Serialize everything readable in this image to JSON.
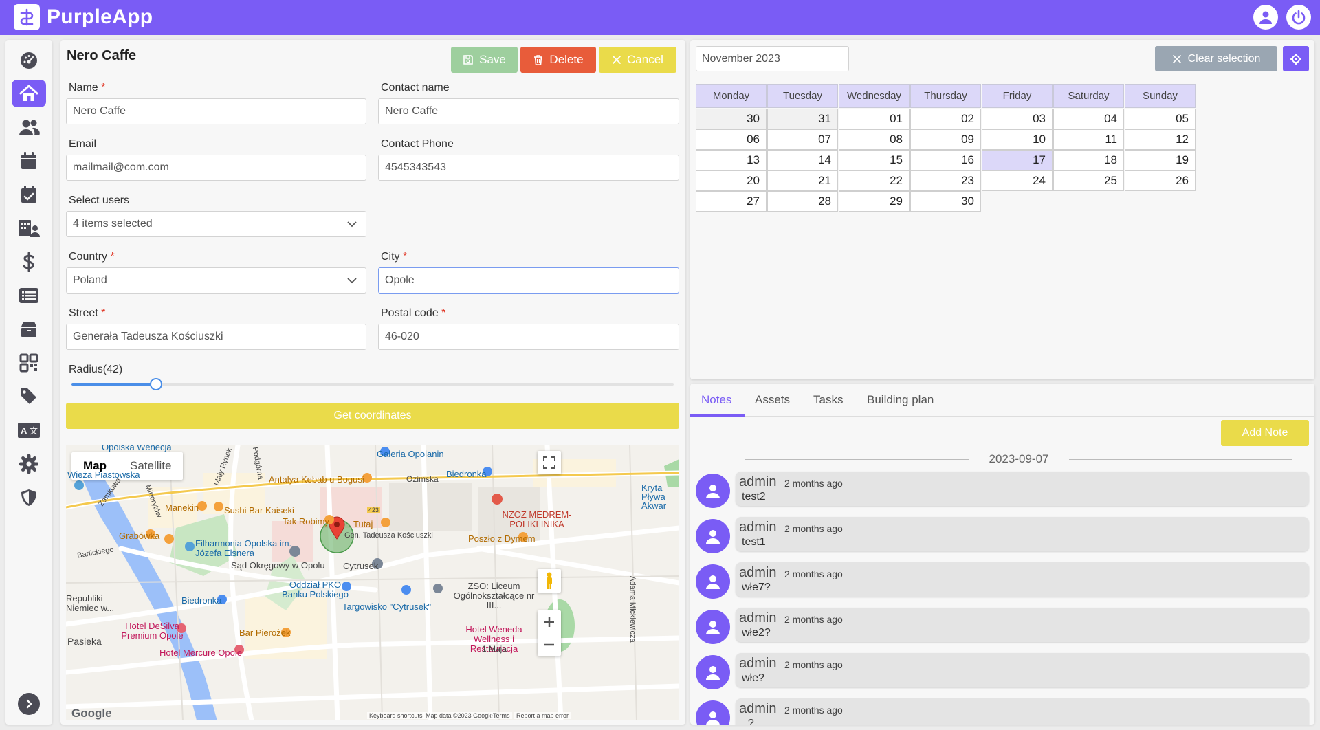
{
  "app": {
    "name": "PurpleApp"
  },
  "colors": {
    "primary": "#7a5cf5",
    "save": "#9ecf9e",
    "delete": "#e85c3a",
    "cancel": "#eadb4a",
    "clear": "#9aa6b2"
  },
  "topbar": {
    "icons": [
      "user-icon",
      "power-icon"
    ]
  },
  "sidebar": {
    "items": [
      {
        "name": "dashboard",
        "icon": "gauge-icon"
      },
      {
        "name": "locations",
        "icon": "home-icon",
        "active": true
      },
      {
        "name": "users",
        "icon": "users-icon"
      },
      {
        "name": "calendar",
        "icon": "calendar-icon"
      },
      {
        "name": "tasks",
        "icon": "calendar-check-icon"
      },
      {
        "name": "buildings",
        "icon": "building-user-icon"
      },
      {
        "name": "finance",
        "icon": "dollar-icon"
      },
      {
        "name": "lists",
        "icon": "list-icon"
      },
      {
        "name": "assets",
        "icon": "box-icon"
      },
      {
        "name": "qr-codes",
        "icon": "qrcode-icon"
      },
      {
        "name": "tags",
        "icon": "tag-icon"
      },
      {
        "name": "translations",
        "icon": "language-icon"
      },
      {
        "name": "settings",
        "icon": "gear-icon"
      },
      {
        "name": "security",
        "icon": "shield-icon"
      }
    ],
    "toggle_icon": "chevron-right-icon"
  },
  "form": {
    "title": "Nero Caffe",
    "buttons": {
      "save": "Save",
      "delete": "Delete",
      "cancel": "Cancel"
    },
    "fields": {
      "name": {
        "label": "Name",
        "value": "Nero Caffe",
        "required": "*"
      },
      "contact_name": {
        "label": "Contact name",
        "value": "Nero Caffe"
      },
      "email": {
        "label": "Email",
        "value": "mailmail@com.com"
      },
      "contact_phone": {
        "label": "Contact Phone",
        "value": "4545343543"
      },
      "select_users": {
        "label": "Select users",
        "value": "4 items selected"
      },
      "country": {
        "label": "Country",
        "value": "Poland",
        "required": "*"
      },
      "city": {
        "label": "City",
        "value": "Opole",
        "required": "*"
      },
      "street": {
        "label": "Street",
        "value": "Generała Tadeusza Kościuszki",
        "required": "*"
      },
      "postal_code": {
        "label": "Postal code",
        "value": "46-020",
        "required": "*"
      }
    },
    "radius": {
      "label": "Radius(42)",
      "value": 42
    },
    "get_coordinates": "Get coordinates"
  },
  "map": {
    "type_buttons": [
      "Map",
      "Satellite"
    ],
    "labels": [
      "Opolska Wenecja",
      "Galeria Opolanin",
      "Wieża Piastowska",
      "Zamkowa",
      "Mały Rynek",
      "Podgórna",
      "Antalya Kebab u Bogusi",
      "Ozimska",
      "Biedronka",
      "Kryta Pływa Akwar",
      "Manekin",
      "Sushi Bar Kaiseki",
      "Tak Robimy",
      "Tutaj",
      "NZOZ MEDREM-POLIKLINIKA",
      "Grabówka",
      "Filharmonia Opolska im. Józefa Elsnera",
      "Barlickiego",
      "Gen. Tadeusza Kościuszki",
      "Poszło z Dymem",
      "Sąd Okręgowy w Opolu",
      "Cytrusek",
      "Oddział PKO Banku Polskiego",
      "ZSO: Liceum Ogólnokształcące nr III...",
      "Biedronka",
      "Targowisko \"Cytrusek\"",
      "Republiki Niemiec w...",
      "Hotel DeSilva Premium Opole",
      "Hotel Weneda Wellness i Restauracja",
      "Pasieka",
      "Bar Pierożek",
      "Hotel Mercure Opole",
      "1 Maja",
      "Adama Mickiewicza",
      "Minorytów",
      "423"
    ],
    "attribution": {
      "shortcuts": "Keyboard shortcuts",
      "data": "Map data ©2023 Google",
      "terms": "Terms",
      "report": "Report a map error",
      "logo": "Google"
    }
  },
  "calendar": {
    "month": "November 2023",
    "clear_selection": "Clear selection",
    "weekdays": [
      "Monday",
      "Tuesday",
      "Wednesday",
      "Thursday",
      "Friday",
      "Saturday",
      "Sunday"
    ],
    "weeks": [
      [
        "30",
        "31",
        "01",
        "02",
        "03",
        "04",
        "05"
      ],
      [
        "06",
        "07",
        "08",
        "09",
        "10",
        "11",
        "12"
      ],
      [
        "13",
        "14",
        "15",
        "16",
        "17",
        "18",
        "19"
      ],
      [
        "20",
        "21",
        "22",
        "23",
        "24",
        "25",
        "26"
      ],
      [
        "27",
        "28",
        "29",
        "30"
      ]
    ],
    "selected_day": "17"
  },
  "notes": {
    "tabs": [
      "Notes",
      "Assets",
      "Tasks",
      "Building plan"
    ],
    "add_note": "Add Note",
    "date": "2023-09-07",
    "items": [
      {
        "author": "admin",
        "time": "2 months ago",
        "text": "test2"
      },
      {
        "author": "admin",
        "time": "2 months ago",
        "text": "test1"
      },
      {
        "author": "admin",
        "time": "2 months ago",
        "text": "włe7?"
      },
      {
        "author": "admin",
        "time": "2 months ago",
        "text": "włe2?"
      },
      {
        "author": "admin",
        "time": "2 months ago",
        "text": "włe?"
      },
      {
        "author": "admin",
        "time": "2 months ago",
        "text": "..?"
      }
    ]
  }
}
